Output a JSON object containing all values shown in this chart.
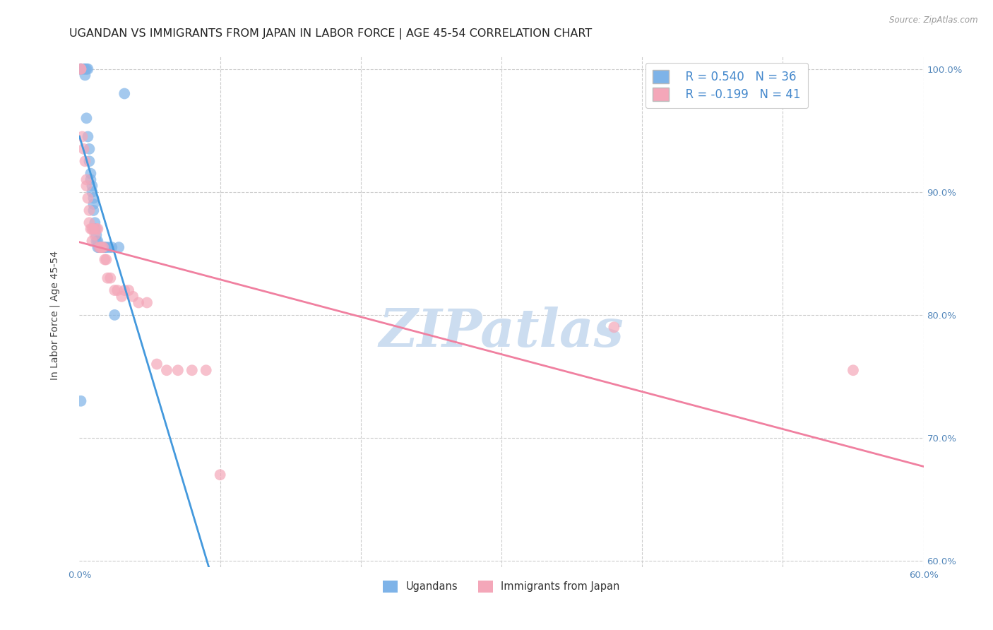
{
  "title": "UGANDAN VS IMMIGRANTS FROM JAPAN IN LABOR FORCE | AGE 45-54 CORRELATION CHART",
  "source": "Source: ZipAtlas.com",
  "ylabel": "In Labor Force | Age 45-54",
  "xlim": [
    0.0,
    0.6
  ],
  "ylim": [
    0.595,
    1.01
  ],
  "xticks": [
    0.0,
    0.1,
    0.2,
    0.3,
    0.4,
    0.5,
    0.6
  ],
  "xticklabels": [
    "0.0%",
    "",
    "",
    "",
    "",
    "",
    "60.0%"
  ],
  "yticks": [
    0.6,
    0.7,
    0.8,
    0.9,
    1.0
  ],
  "yticklabels": [
    "60.0%",
    "70.0%",
    "80.0%",
    "90.0%",
    "100.0%"
  ],
  "legend_r1": "R = 0.540",
  "legend_n1": "N = 36",
  "legend_r2": "R = -0.199",
  "legend_n2": "N = 41",
  "ugandan_x": [
    0.001,
    0.001,
    0.003,
    0.004,
    0.004,
    0.005,
    0.005,
    0.006,
    0.006,
    0.007,
    0.007,
    0.008,
    0.008,
    0.009,
    0.009,
    0.01,
    0.01,
    0.01,
    0.011,
    0.011,
    0.012,
    0.012,
    0.013,
    0.013,
    0.014,
    0.015,
    0.016,
    0.017,
    0.018,
    0.019,
    0.021,
    0.023,
    0.025,
    0.028,
    0.032,
    0.001
  ],
  "ugandan_y": [
    1.0,
    1.0,
    1.0,
    1.0,
    0.995,
    1.0,
    0.96,
    1.0,
    0.945,
    0.935,
    0.925,
    0.915,
    0.91,
    0.905,
    0.9,
    0.895,
    0.89,
    0.885,
    0.875,
    0.87,
    0.865,
    0.86,
    0.86,
    0.855,
    0.855,
    0.855,
    0.855,
    0.855,
    0.855,
    0.855,
    0.855,
    0.855,
    0.8,
    0.855,
    0.98,
    0.73
  ],
  "japan_x": [
    0.001,
    0.001,
    0.002,
    0.003,
    0.004,
    0.005,
    0.005,
    0.006,
    0.007,
    0.007,
    0.008,
    0.009,
    0.009,
    0.01,
    0.011,
    0.012,
    0.013,
    0.014,
    0.015,
    0.016,
    0.017,
    0.018,
    0.019,
    0.02,
    0.022,
    0.025,
    0.027,
    0.03,
    0.032,
    0.035,
    0.038,
    0.042,
    0.048,
    0.055,
    0.062,
    0.07,
    0.08,
    0.09,
    0.38,
    0.55,
    0.1
  ],
  "japan_y": [
    1.0,
    1.0,
    0.945,
    0.935,
    0.925,
    0.91,
    0.905,
    0.895,
    0.885,
    0.875,
    0.87,
    0.87,
    0.86,
    0.87,
    0.865,
    0.87,
    0.87,
    0.855,
    0.855,
    0.855,
    0.855,
    0.845,
    0.845,
    0.83,
    0.83,
    0.82,
    0.82,
    0.815,
    0.82,
    0.82,
    0.815,
    0.81,
    0.81,
    0.76,
    0.755,
    0.755,
    0.755,
    0.755,
    0.79,
    0.755,
    0.67
  ],
  "ugandan_color": "#7eb3e8",
  "japan_color": "#f4a7b9",
  "trend_ugandan_color": "#4499dd",
  "trend_japan_color": "#f080a0",
  "watermark": "ZIPatlas",
  "watermark_color": "#ccddf0",
  "title_fontsize": 11.5,
  "axis_label_fontsize": 10,
  "tick_fontsize": 9.5,
  "legend_fontsize": 12
}
